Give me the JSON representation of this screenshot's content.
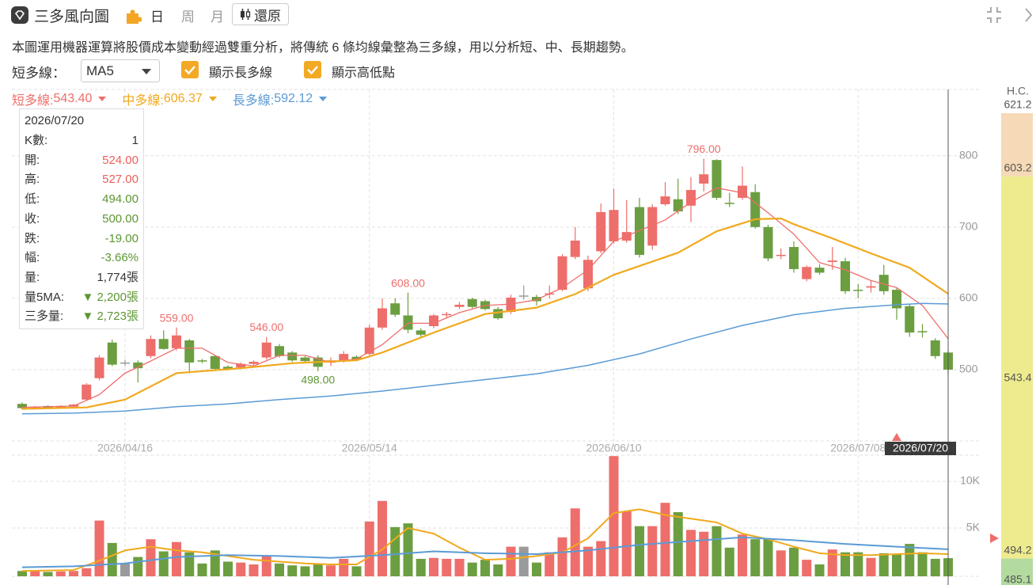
{
  "header": {
    "title": "三多風向圖",
    "tabs": [
      "日",
      "周",
      "月"
    ],
    "button": "還原"
  },
  "description": "本圖運用機器運算將股價成本變動經過雙重分析，將傳統 6 條均線彙整為三多線，用以分析短、中、長期趨勢。",
  "controls": {
    "select_label": "短多線：",
    "select_value": "MA5",
    "checkboxes": [
      "顯示長多線",
      "顯示高低點"
    ]
  },
  "info": {
    "date": "2026/07/20",
    "rows": [
      {
        "label": "K數:",
        "value": "1",
        "color": "#333333"
      },
      {
        "label": "開:",
        "value": "524.00",
        "color": "#ee5f5b"
      },
      {
        "label": "高:",
        "value": "527.00",
        "color": "#ee5f5b"
      },
      {
        "label": "低:",
        "value": "494.00",
        "color": "#5d9632"
      },
      {
        "label": "收:",
        "value": "500.00",
        "color": "#5d9632"
      },
      {
        "label": "跌:",
        "value": "-19.00",
        "color": "#5d9632"
      },
      {
        "label": "幅:",
        "value": "-3.66%",
        "color": "#5d9632"
      },
      {
        "label": "量:",
        "value": "1,774張",
        "color": "#333333"
      },
      {
        "label": "量5MA:",
        "value": "▼ 2,200張",
        "color": "#5d9632"
      },
      {
        "label": "三多量:",
        "value": "▼ 2,723張",
        "color": "#5d9632"
      }
    ]
  },
  "chart_data": {
    "type": "candlestick",
    "categories": [
      null,
      null,
      null,
      null,
      null,
      null,
      null,
      null,
      "2026/04/16",
      null,
      null,
      null,
      null,
      null,
      null,
      null,
      null,
      null,
      null,
      null,
      null,
      null,
      null,
      null,
      null,
      null,
      null,
      "2026/05/14",
      null,
      null,
      null,
      null,
      null,
      null,
      null,
      null,
      null,
      null,
      null,
      null,
      null,
      null,
      null,
      null,
      null,
      null,
      "2026/06/10",
      null,
      null,
      null,
      null,
      null,
      null,
      null,
      null,
      null,
      null,
      null,
      null,
      null,
      null,
      null,
      null,
      null,
      null,
      "2026/07/08",
      null,
      null,
      null,
      null,
      null,
      null,
      "2026/07/20"
    ],
    "open": [
      452,
      446,
      449,
      446,
      448,
      458,
      488,
      538,
      510,
      510,
      519,
      543,
      530,
      541,
      513,
      519,
      504,
      503,
      508,
      517,
      533,
      524,
      517,
      517,
      510,
      513,
      518,
      522,
      559,
      593,
      576,
      555,
      561,
      577,
      588,
      599,
      596,
      585,
      581,
      604,
      602,
      606,
      612,
      658,
      614,
      666,
      680,
      681,
      728,
      674,
      732,
      739,
      730,
      761,
      794,
      734,
      741,
      749,
      700,
      660,
      672,
      627,
      643,
      651,
      652,
      612,
      615,
      633,
      612,
      589,
      554,
      541,
      524
    ],
    "high": [
      454,
      449,
      450,
      450,
      452,
      481,
      520,
      542,
      514,
      513,
      548,
      555,
      559,
      543,
      515,
      520,
      506,
      510,
      513,
      546,
      536,
      526,
      519,
      520,
      517,
      526,
      520,
      563,
      600,
      600,
      608,
      558,
      578,
      581,
      595,
      601,
      598,
      588,
      605,
      618,
      605,
      618,
      662,
      700,
      660,
      733,
      754,
      738,
      741,
      732,
      763,
      768,
      770,
      796,
      795,
      748,
      785,
      760,
      703,
      670,
      680,
      646,
      648,
      672,
      657,
      620,
      625,
      647,
      615,
      592,
      564,
      544,
      527
    ],
    "low": [
      444,
      444,
      445,
      445,
      447,
      456,
      485,
      505,
      505,
      482,
      516,
      528,
      527,
      495,
      509,
      498,
      499,
      501,
      506,
      514,
      517,
      511,
      510,
      498,
      505,
      510,
      512,
      520,
      556,
      574,
      551,
      545,
      558,
      572,
      585,
      586,
      583,
      570,
      578,
      598,
      590,
      600,
      610,
      655,
      610,
      663,
      677,
      678,
      657,
      668,
      730,
      718,
      707,
      750,
      738,
      728,
      738,
      698,
      652,
      655,
      636,
      624,
      633,
      640,
      606,
      600,
      608,
      605,
      570,
      546,
      545,
      515,
      494
    ],
    "close": [
      446,
      448,
      446,
      449,
      451,
      479,
      517,
      507,
      510,
      502,
      543,
      529,
      548,
      510,
      512,
      501,
      500,
      508,
      511,
      538,
      519,
      513,
      512,
      504,
      513,
      522,
      514,
      559,
      586,
      577,
      556,
      549,
      576,
      578,
      591,
      588,
      585,
      572,
      601,
      604,
      596,
      607,
      659,
      681,
      654,
      721,
      724,
      693,
      661,
      728,
      743,
      722,
      752,
      774,
      741,
      733,
      758,
      700,
      656,
      661,
      641,
      644,
      636,
      653,
      610,
      611,
      617,
      610,
      586,
      552,
      553,
      519,
      500
    ],
    "ylim": [
      400,
      893
    ],
    "yticks": [
      500,
      600,
      700,
      800
    ],
    "grid": true,
    "colors": {
      "up": "#ee6e6b",
      "down": "#6b9e40",
      "flat": "#9a9a9a"
    },
    "lines": [
      {
        "name": "短多線:",
        "last_value": 543.4,
        "last_label": "543.40",
        "color": "#ee6e6b",
        "width": 1.3,
        "x": [
          0,
          4,
          6,
          8,
          10,
          12,
          14,
          16,
          18,
          20,
          22,
          24,
          26,
          28,
          30,
          32,
          34,
          36,
          38,
          40,
          42,
          44,
          46,
          48,
          50,
          52,
          54,
          56,
          58,
          60,
          62,
          64,
          66,
          68,
          70,
          72
        ],
        "values": [
          447,
          449,
          465,
          495,
          512,
          530,
          530,
          510,
          505,
          520,
          520,
          510,
          515,
          535,
          565,
          565,
          580,
          590,
          592,
          598,
          615,
          640,
          680,
          695,
          710,
          735,
          755,
          748,
          720,
          690,
          650,
          640,
          625,
          615,
          590,
          543.4
        ]
      },
      {
        "name": "中多線:",
        "last_value": 606.37,
        "last_label": "606.37",
        "color": "#f0a91e",
        "width": 2.2,
        "x": [
          0,
          5,
          8,
          12,
          17,
          21,
          26,
          28,
          32,
          36,
          40,
          43,
          46,
          51,
          54,
          57,
          59,
          60,
          63,
          66,
          69,
          72
        ],
        "values": [
          445,
          447,
          458,
          495,
          502,
          509,
          513,
          524,
          552,
          578,
          587,
          606,
          633,
          664,
          694,
          711,
          712,
          704,
          684,
          663,
          643,
          606.37
        ]
      },
      {
        "name": "長多線:",
        "last_value": 592.12,
        "last_label": "592.12",
        "color": "#5b9bd5",
        "width": 1.5,
        "x": [
          0,
          4,
          8,
          12,
          16,
          20,
          24,
          28,
          32,
          36,
          40,
          44,
          48,
          52,
          56,
          60,
          64,
          68,
          70,
          72
        ],
        "values": [
          438,
          439,
          442,
          448,
          452,
          458,
          463,
          470,
          478,
          486,
          494,
          506,
          522,
          543,
          562,
          577,
          586,
          591,
          593,
          592.12
        ]
      }
    ],
    "annotations": [
      {
        "index": 12,
        "value": 559,
        "label": "559.00",
        "color": "#ee6e6b",
        "position": "above"
      },
      {
        "index": 19,
        "value": 546,
        "label": "546.00",
        "color": "#ee6e6b",
        "position": "above"
      },
      {
        "index": 30,
        "value": 608,
        "label": "608.00",
        "color": "#ee6e6b",
        "position": "above"
      },
      {
        "index": 53,
        "value": 796,
        "label": "796.00",
        "color": "#ee6e6b",
        "position": "above"
      },
      {
        "index": 23,
        "value": 498,
        "label": "498.00",
        "color": "#5d9632",
        "position": "below"
      }
    ]
  },
  "volume": {
    "values": [
      400,
      450,
      300,
      350,
      400,
      700,
      5800,
      3400,
      1200,
      1900,
      3800,
      2500,
      3500,
      2400,
      1200,
      2600,
      1400,
      1300,
      1100,
      2000,
      1200,
      1000,
      900,
      1100,
      1000,
      1700,
      900,
      5700,
      7900,
      5100,
      5500,
      1700,
      1800,
      1700,
      1700,
      1300,
      1600,
      1100,
      3000,
      3000,
      1300,
      2400,
      4000,
      7100,
      3000,
      3600,
      12700,
      6800,
      5200,
      5200,
      7700,
      6700,
      4800,
      4600,
      5200,
      2900,
      4300,
      3800,
      3900,
      2600,
      2900,
      1600,
      1100,
      2700,
      2400,
      2400,
      1800,
      2300,
      2200,
      3300,
      2400,
      1700,
      1774
    ],
    "ylim": [
      0,
      12800
    ],
    "yticks": [
      {
        "value": 5000,
        "label": "5K"
      },
      {
        "value": 10000,
        "label": "10K"
      }
    ],
    "lines": [
      {
        "color": "#f0a91e",
        "x": [
          0,
          4,
          6,
          8,
          10,
          12,
          14,
          16,
          18,
          20,
          22,
          24,
          26,
          28,
          30,
          32,
          34,
          36,
          38,
          40,
          42,
          44,
          46,
          48,
          50,
          52,
          54,
          56,
          58,
          60,
          62,
          64,
          66,
          68,
          70,
          72
        ],
        "values": [
          400,
          500,
          1500,
          2600,
          3000,
          2600,
          2400,
          2000,
          1600,
          1400,
          1200,
          1100,
          1100,
          2700,
          5000,
          4400,
          2900,
          1600,
          1700,
          2000,
          2400,
          3900,
          6600,
          7000,
          6400,
          6000,
          5600,
          4400,
          3800,
          3000,
          2300,
          2100,
          2100,
          2200,
          2300,
          2200
        ]
      },
      {
        "color": "#5b9bd5",
        "x": [
          0,
          4,
          8,
          12,
          16,
          20,
          24,
          28,
          32,
          36,
          40,
          44,
          48,
          52,
          56,
          60,
          64,
          68,
          72
        ],
        "values": [
          800,
          900,
          1200,
          1900,
          2100,
          2000,
          1800,
          2100,
          2500,
          2300,
          2200,
          2600,
          3200,
          3600,
          4000,
          3700,
          3300,
          3000,
          2723
        ]
      }
    ]
  },
  "hc_scale": {
    "title": "H.C.",
    "levels": [
      621.2,
      603.2,
      543.4,
      494.2,
      485.1
    ],
    "colors": [
      "#f6d9b6",
      "#eeeb8e",
      "#b3dba0"
    ]
  }
}
